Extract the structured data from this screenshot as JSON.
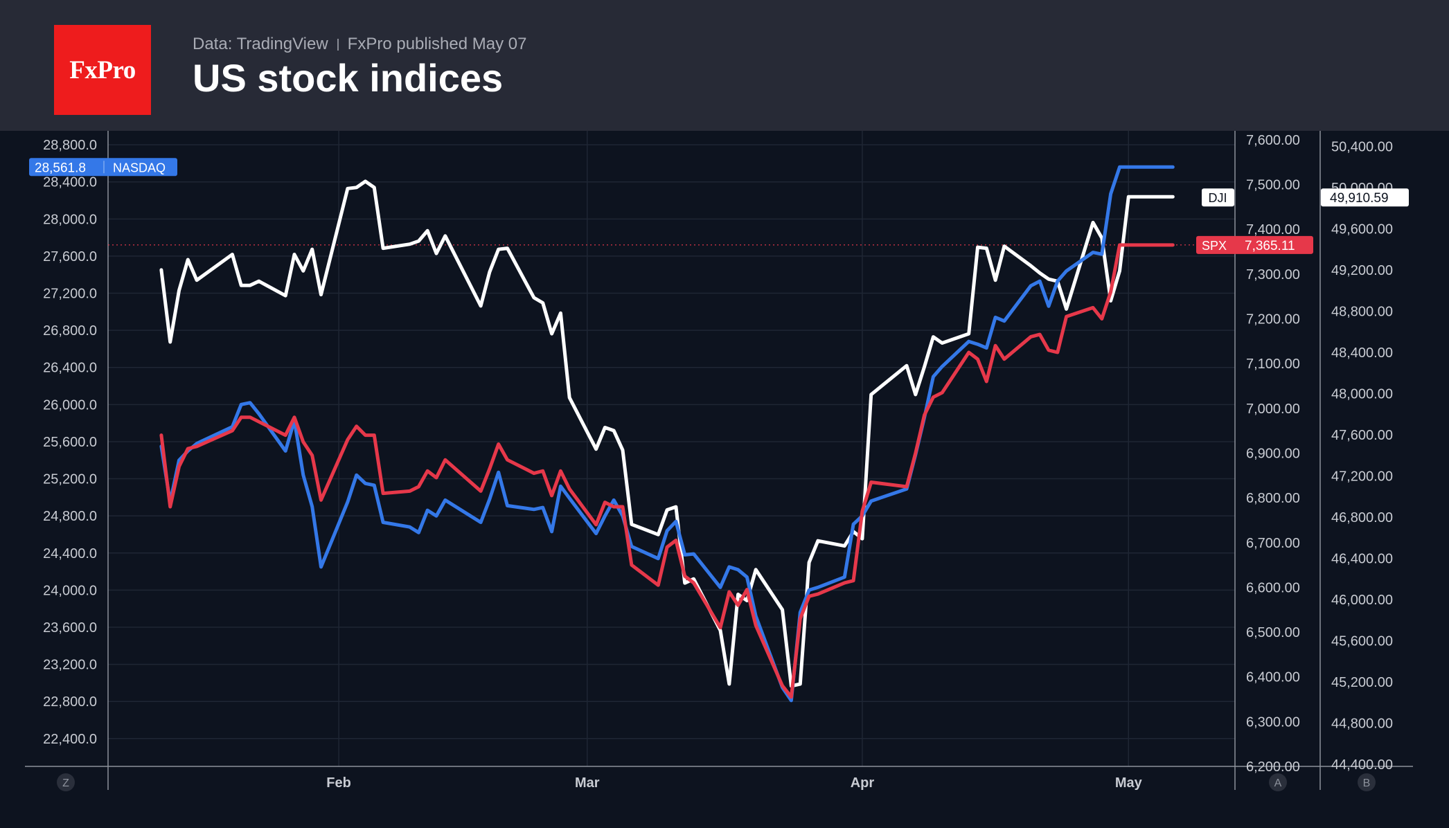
{
  "header": {
    "logo_text": "FxPro",
    "source": "Data: TradingView",
    "published": "FxPro published May 07",
    "title": "US stock indices"
  },
  "colors": {
    "background": "#0d131f",
    "header": "#272a36",
    "logo": "#ee1c1d",
    "nasdaq": "#3478e8",
    "spx": "#e6384a",
    "dji": "#ffffff"
  },
  "scale_buttons": {
    "left": "Z",
    "right_a": "A",
    "right_b": "B"
  },
  "chart_data": {
    "type": "line",
    "title": "US stock indices",
    "x_tick_labels": [
      "Feb",
      "Mar",
      "Apr",
      "May"
    ],
    "x_range": [
      "2026-01-06",
      "2026-05-13"
    ],
    "grid": true,
    "axes": {
      "left": {
        "series": "NASDAQ",
        "ylim": [
          22100,
          28950
        ],
        "ticks": [
          22400,
          22800,
          23200,
          23600,
          24000,
          24400,
          24800,
          25200,
          25600,
          26000,
          26400,
          26800,
          27200,
          27600,
          28000,
          28400,
          28800
        ]
      },
      "right_a": {
        "series": "SPX",
        "ylim": [
          6200,
          7620
        ],
        "ticks": [
          6200,
          6300,
          6400,
          6500,
          6600,
          6700,
          6800,
          6900,
          7000,
          7100,
          7200,
          7300,
          7400,
          7500,
          7600
        ]
      },
      "right_b": {
        "series": "DJI",
        "ylim": [
          44380,
          50550
        ],
        "ticks": [
          44400,
          44800,
          45200,
          45600,
          46000,
          46400,
          46800,
          47200,
          47600,
          48000,
          48400,
          48800,
          49200,
          49600,
          50000,
          50400
        ]
      }
    },
    "series": [
      {
        "name": "DJI",
        "axis": "right_b",
        "last_label": "49,910.59",
        "x": [
          "2026-01-12",
          "2026-01-13",
          "2026-01-14",
          "2026-01-15",
          "2026-01-16",
          "2026-01-20",
          "2026-01-21",
          "2026-01-22",
          "2026-01-23",
          "2026-01-26",
          "2026-01-27",
          "2026-01-28",
          "2026-01-29",
          "2026-01-30",
          "2026-02-02",
          "2026-02-03",
          "2026-02-04",
          "2026-02-05",
          "2026-02-06",
          "2026-02-09",
          "2026-02-10",
          "2026-02-11",
          "2026-02-12",
          "2026-02-13",
          "2026-02-17",
          "2026-02-18",
          "2026-02-19",
          "2026-02-20",
          "2026-02-23",
          "2026-02-24",
          "2026-02-25",
          "2026-02-26",
          "2026-02-27",
          "2026-03-02",
          "2026-03-03",
          "2026-03-04",
          "2026-03-05",
          "2026-03-06",
          "2026-03-09",
          "2026-03-10",
          "2026-03-11",
          "2026-03-12",
          "2026-03-13",
          "2026-03-16",
          "2026-03-17",
          "2026-03-18",
          "2026-03-19",
          "2026-03-20",
          "2026-03-23",
          "2026-03-24",
          "2026-03-25",
          "2026-03-26",
          "2026-03-27",
          "2026-03-30",
          "2026-03-31",
          "2026-04-01",
          "2026-04-02",
          "2026-04-06",
          "2026-04-07",
          "2026-04-08",
          "2026-04-09",
          "2026-04-10",
          "2026-04-13",
          "2026-04-14",
          "2026-04-15",
          "2026-04-16",
          "2026-04-17",
          "2026-04-20",
          "2026-04-21",
          "2026-04-22",
          "2026-04-23",
          "2026-04-24",
          "2026-04-27",
          "2026-04-28",
          "2026-04-29",
          "2026-04-30",
          "2026-05-01",
          "2026-05-04",
          "2026-05-05",
          "2026-05-06"
        ],
        "values": [
          49200,
          48500,
          49000,
          49300,
          49100,
          49350,
          49050,
          49050,
          49090,
          48950,
          49350,
          49190,
          49400,
          48960,
          49990,
          50000,
          50060,
          50000,
          49410,
          49450,
          49480,
          49580,
          49360,
          49530,
          48850,
          49180,
          49400,
          49410,
          48930,
          48880,
          48580,
          48780,
          47960,
          47460,
          47670,
          47640,
          47450,
          46730,
          46630,
          46870,
          46900,
          46160,
          46200,
          45700,
          45180,
          46050,
          45990,
          46290,
          45900,
          45160,
          45180,
          46360,
          46570,
          46520,
          46660,
          46590,
          47990,
          48270,
          47990,
          48260,
          48550,
          48490,
          48580,
          49420,
          49410,
          49100,
          49430,
          49240,
          49170,
          49110,
          49090,
          48820,
          49660,
          49510,
          48900,
          49190,
          49910,
          49910,
          49910,
          49910
        ]
      },
      {
        "name": "NASDAQ",
        "axis": "left",
        "last_label": "28,561.8",
        "x": [
          "2026-01-12",
          "2026-01-13",
          "2026-01-14",
          "2026-01-15",
          "2026-01-16",
          "2026-01-20",
          "2026-01-21",
          "2026-01-22",
          "2026-01-23",
          "2026-01-26",
          "2026-01-27",
          "2026-01-28",
          "2026-01-29",
          "2026-01-30",
          "2026-02-02",
          "2026-02-03",
          "2026-02-04",
          "2026-02-05",
          "2026-02-06",
          "2026-02-09",
          "2026-02-10",
          "2026-02-11",
          "2026-02-12",
          "2026-02-13",
          "2026-02-17",
          "2026-02-18",
          "2026-02-19",
          "2026-02-20",
          "2026-02-23",
          "2026-02-24",
          "2026-02-25",
          "2026-02-26",
          "2026-02-27",
          "2026-03-02",
          "2026-03-03",
          "2026-03-04",
          "2026-03-05",
          "2026-03-06",
          "2026-03-09",
          "2026-03-10",
          "2026-03-11",
          "2026-03-12",
          "2026-03-13",
          "2026-03-16",
          "2026-03-17",
          "2026-03-18",
          "2026-03-19",
          "2026-03-20",
          "2026-03-23",
          "2026-03-24",
          "2026-03-25",
          "2026-03-26",
          "2026-03-27",
          "2026-03-30",
          "2026-03-31",
          "2026-04-01",
          "2026-04-02",
          "2026-04-06",
          "2026-04-07",
          "2026-04-08",
          "2026-04-09",
          "2026-04-10",
          "2026-04-13",
          "2026-04-14",
          "2026-04-15",
          "2026-04-16",
          "2026-04-17",
          "2026-04-20",
          "2026-04-21",
          "2026-04-22",
          "2026-04-23",
          "2026-04-24",
          "2026-04-27",
          "2026-04-28",
          "2026-04-29",
          "2026-04-30",
          "2026-05-01",
          "2026-05-04",
          "2026-05-05",
          "2026-05-06"
        ],
        "values": [
          25550,
          24950,
          25400,
          25500,
          25580,
          25760,
          26000,
          26020,
          25900,
          25500,
          25830,
          25240,
          24900,
          24250,
          24950,
          25240,
          25150,
          25130,
          24730,
          24680,
          24620,
          24860,
          24800,
          24970,
          24730,
          24980,
          25270,
          24910,
          24870,
          24890,
          24630,
          25120,
          24990,
          24610,
          24800,
          24970,
          24800,
          24470,
          24340,
          24640,
          24740,
          24380,
          24390,
          24030,
          24250,
          24220,
          24140,
          23720,
          22950,
          22810,
          23760,
          24000,
          24030,
          24140,
          24710,
          24800,
          24960,
          25090,
          25460,
          25860,
          26300,
          26410,
          26680,
          26650,
          26610,
          26940,
          26900,
          27280,
          27330,
          27060,
          27330,
          27440,
          27640,
          27620,
          28270,
          28560,
          28560,
          28560,
          28560,
          28560
        ]
      },
      {
        "name": "SPX",
        "axis": "right_a",
        "last_label": "7,365.11",
        "x": [
          "2026-01-12",
          "2026-01-13",
          "2026-01-14",
          "2026-01-15",
          "2026-01-16",
          "2026-01-20",
          "2026-01-21",
          "2026-01-22",
          "2026-01-23",
          "2026-01-26",
          "2026-01-27",
          "2026-01-28",
          "2026-01-29",
          "2026-01-30",
          "2026-02-02",
          "2026-02-03",
          "2026-02-04",
          "2026-02-05",
          "2026-02-06",
          "2026-02-09",
          "2026-02-10",
          "2026-02-11",
          "2026-02-12",
          "2026-02-13",
          "2026-02-17",
          "2026-02-18",
          "2026-02-19",
          "2026-02-20",
          "2026-02-23",
          "2026-02-24",
          "2026-02-25",
          "2026-02-26",
          "2026-02-27",
          "2026-03-02",
          "2026-03-03",
          "2026-03-04",
          "2026-03-05",
          "2026-03-06",
          "2026-03-09",
          "2026-03-10",
          "2026-03-11",
          "2026-03-12",
          "2026-03-13",
          "2026-03-16",
          "2026-03-17",
          "2026-03-18",
          "2026-03-19",
          "2026-03-20",
          "2026-03-23",
          "2026-03-24",
          "2026-03-25",
          "2026-03-26",
          "2026-03-27",
          "2026-03-30",
          "2026-03-31",
          "2026-04-01",
          "2026-04-02",
          "2026-04-06",
          "2026-04-07",
          "2026-04-08",
          "2026-04-09",
          "2026-04-10",
          "2026-04-13",
          "2026-04-14",
          "2026-04-15",
          "2026-04-16",
          "2026-04-17",
          "2026-04-20",
          "2026-04-21",
          "2026-04-22",
          "2026-04-23",
          "2026-04-24",
          "2026-04-27",
          "2026-04-28",
          "2026-04-29",
          "2026-04-30",
          "2026-05-01",
          "2026-05-04",
          "2026-05-05",
          "2026-05-06"
        ],
        "values": [
          6940,
          6780,
          6870,
          6910,
          6915,
          6950,
          6980,
          6980,
          6970,
          6940,
          6980,
          6925,
          6895,
          6795,
          6930,
          6960,
          6940,
          6940,
          6810,
          6815,
          6825,
          6860,
          6845,
          6885,
          6815,
          6865,
          6920,
          6885,
          6855,
          6860,
          6805,
          6860,
          6820,
          6740,
          6790,
          6780,
          6780,
          6650,
          6605,
          6690,
          6705,
          6625,
          6610,
          6510,
          6590,
          6560,
          6595,
          6515,
          6380,
          6355,
          6530,
          6580,
          6585,
          6610,
          6615,
          6770,
          6835,
          6825,
          6900,
          6985,
          7025,
          7035,
          7125,
          7110,
          7060,
          7140,
          7110,
          7160,
          7165,
          7130,
          7125,
          7205,
          7225,
          7200,
          7260,
          7365,
          7365,
          7365,
          7365,
          7365
        ]
      }
    ],
    "reference_line": {
      "series": "SPX",
      "value": 7365.11
    }
  }
}
